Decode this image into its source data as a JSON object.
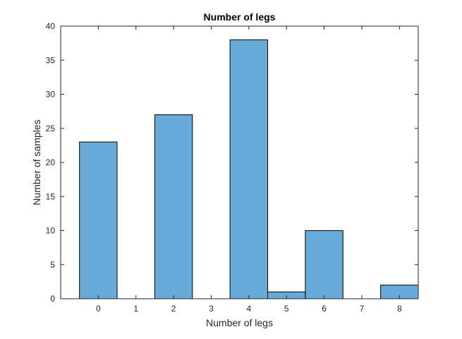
{
  "chart_data": {
    "type": "bar",
    "title": "Number of legs",
    "xlabel": "Number of legs",
    "ylabel": "Number of samples",
    "categories": [
      "0",
      "2",
      "4",
      "5",
      "6",
      "8"
    ],
    "bars": [
      {
        "x": 0,
        "value": 23
      },
      {
        "x": 2,
        "value": 27
      },
      {
        "x": 4,
        "value": 38
      },
      {
        "x": 5,
        "value": 1
      },
      {
        "x": 6,
        "value": 10
      },
      {
        "x": 8,
        "value": 2
      }
    ],
    "xlim": [
      -1,
      8.5
    ],
    "ylim": [
      0,
      40
    ],
    "xticks": [
      0,
      1,
      2,
      3,
      4,
      5,
      6,
      7,
      8
    ],
    "yticks": [
      0,
      5,
      10,
      15,
      20,
      25,
      30,
      35,
      40
    ],
    "grid": false,
    "bar_color": "#66abd9",
    "bar_edge_color": "#000000"
  }
}
